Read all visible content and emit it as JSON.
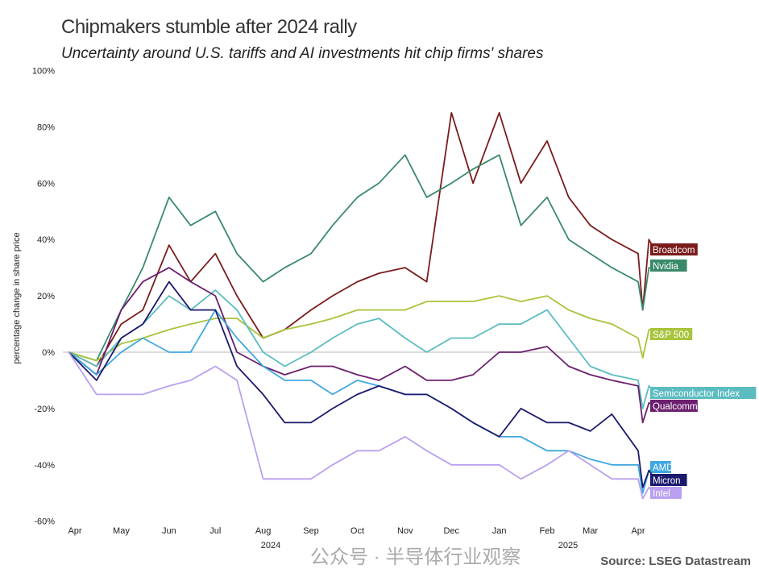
{
  "chart_data": {
    "type": "line",
    "title": "Chipmakers stumble after 2024 rally",
    "subtitle": "Uncertainty around U.S. tariffs and AI investments hit chip firms' shares",
    "ylabel": "percentage change in share price",
    "xlabel": "",
    "ylim": [
      -60,
      100
    ],
    "yticks": [
      -60,
      -40,
      -20,
      0,
      20,
      40,
      60,
      80,
      100
    ],
    "ytick_labels": [
      "-60%",
      "-40%",
      "-20%",
      "0%",
      "20%",
      "40%",
      "60%",
      "80%",
      "100%"
    ],
    "xtick_labels": [
      "Apr",
      "May",
      "Jun",
      "Jul",
      "Aug",
      "Sep",
      "Oct",
      "Nov",
      "Dec",
      "Jan",
      "Feb",
      "Mar",
      "Apr"
    ],
    "xtick_dates": [
      "2024-04-01",
      "2024-05-01",
      "2024-06-01",
      "2024-07-01",
      "2024-08-01",
      "2024-09-01",
      "2024-10-01",
      "2024-11-01",
      "2024-12-01",
      "2025-01-01",
      "2025-02-01",
      "2025-03-01",
      "2025-04-01"
    ],
    "year_labels": [
      "2024",
      "2025"
    ],
    "grid": false,
    "legend": "right-end labels",
    "x": [
      "2024-03-28",
      "2024-04-15",
      "2024-05-01",
      "2024-05-15",
      "2024-06-01",
      "2024-06-15",
      "2024-07-01",
      "2024-07-15",
      "2024-08-01",
      "2024-08-15",
      "2024-09-01",
      "2024-09-15",
      "2024-10-01",
      "2024-10-15",
      "2024-11-01",
      "2024-11-15",
      "2024-12-01",
      "2024-12-15",
      "2025-01-01",
      "2025-01-15",
      "2025-02-01",
      "2025-02-15",
      "2025-03-01",
      "2025-03-15",
      "2025-04-01",
      "2025-04-04",
      "2025-04-08",
      "2025-04-12"
    ],
    "series": [
      {
        "name": "Broadcom",
        "color": "#7a1c1c",
        "values": [
          0,
          -5,
          10,
          15,
          38,
          25,
          35,
          20,
          5,
          8,
          15,
          20,
          25,
          28,
          30,
          25,
          85,
          60,
          85,
          60,
          75,
          55,
          45,
          40,
          35,
          15,
          40,
          36
        ]
      },
      {
        "name": "Nvidia",
        "color": "#3a8a6a",
        "values": [
          0,
          -3,
          15,
          30,
          55,
          45,
          50,
          35,
          25,
          30,
          35,
          45,
          55,
          60,
          70,
          55,
          60,
          65,
          70,
          45,
          55,
          40,
          35,
          30,
          25,
          15,
          30,
          30
        ]
      },
      {
        "name": "S&P 500",
        "color": "#a8c43c",
        "values": [
          0,
          -3,
          3,
          5,
          8,
          10,
          12,
          12,
          5,
          8,
          10,
          12,
          15,
          15,
          15,
          18,
          18,
          18,
          20,
          18,
          20,
          15,
          12,
          10,
          5,
          -2,
          8,
          8
        ]
      },
      {
        "name": "Semiconductor Index",
        "color": "#5bbcc0",
        "values": [
          0,
          -5,
          5,
          10,
          20,
          15,
          22,
          15,
          0,
          -5,
          0,
          5,
          10,
          12,
          5,
          0,
          5,
          5,
          10,
          10,
          15,
          5,
          -5,
          -8,
          -10,
          -20,
          -12,
          -14
        ]
      },
      {
        "name": "Qualcomm",
        "color": "#6b1f6e",
        "values": [
          0,
          -8,
          15,
          25,
          30,
          25,
          20,
          0,
          -5,
          -8,
          -5,
          -5,
          -8,
          -10,
          -5,
          -10,
          -10,
          -8,
          0,
          0,
          2,
          -5,
          -8,
          -10,
          -12,
          -25,
          -18,
          -19
        ]
      },
      {
        "name": "AMD",
        "color": "#3fa8e0",
        "values": [
          0,
          -8,
          0,
          5,
          0,
          0,
          15,
          5,
          -5,
          -10,
          -10,
          -15,
          -10,
          -12,
          -15,
          -15,
          -20,
          -25,
          -30,
          -30,
          -35,
          -35,
          -38,
          -40,
          -40,
          -50,
          -42,
          -41
        ]
      },
      {
        "name": "Micron",
        "color": "#1c1a6e",
        "values": [
          0,
          -10,
          5,
          10,
          25,
          15,
          15,
          -5,
          -15,
          -25,
          -25,
          -20,
          -15,
          -12,
          -15,
          -15,
          -20,
          -25,
          -30,
          -20,
          -25,
          -25,
          -28,
          -22,
          -35,
          -48,
          -42,
          -45
        ]
      },
      {
        "name": "Intel",
        "color": "#b9a0f0",
        "values": [
          0,
          -15,
          -15,
          -15,
          -12,
          -10,
          -5,
          -10,
          -45,
          -45,
          -45,
          -40,
          -35,
          -35,
          -30,
          -35,
          -40,
          -40,
          -40,
          -45,
          -40,
          -35,
          -40,
          -45,
          -45,
          -52,
          -48,
          -50
        ]
      }
    ],
    "source": "Source: LSEG Datastream"
  },
  "watermark": "公众号 · 半导体行业观察"
}
